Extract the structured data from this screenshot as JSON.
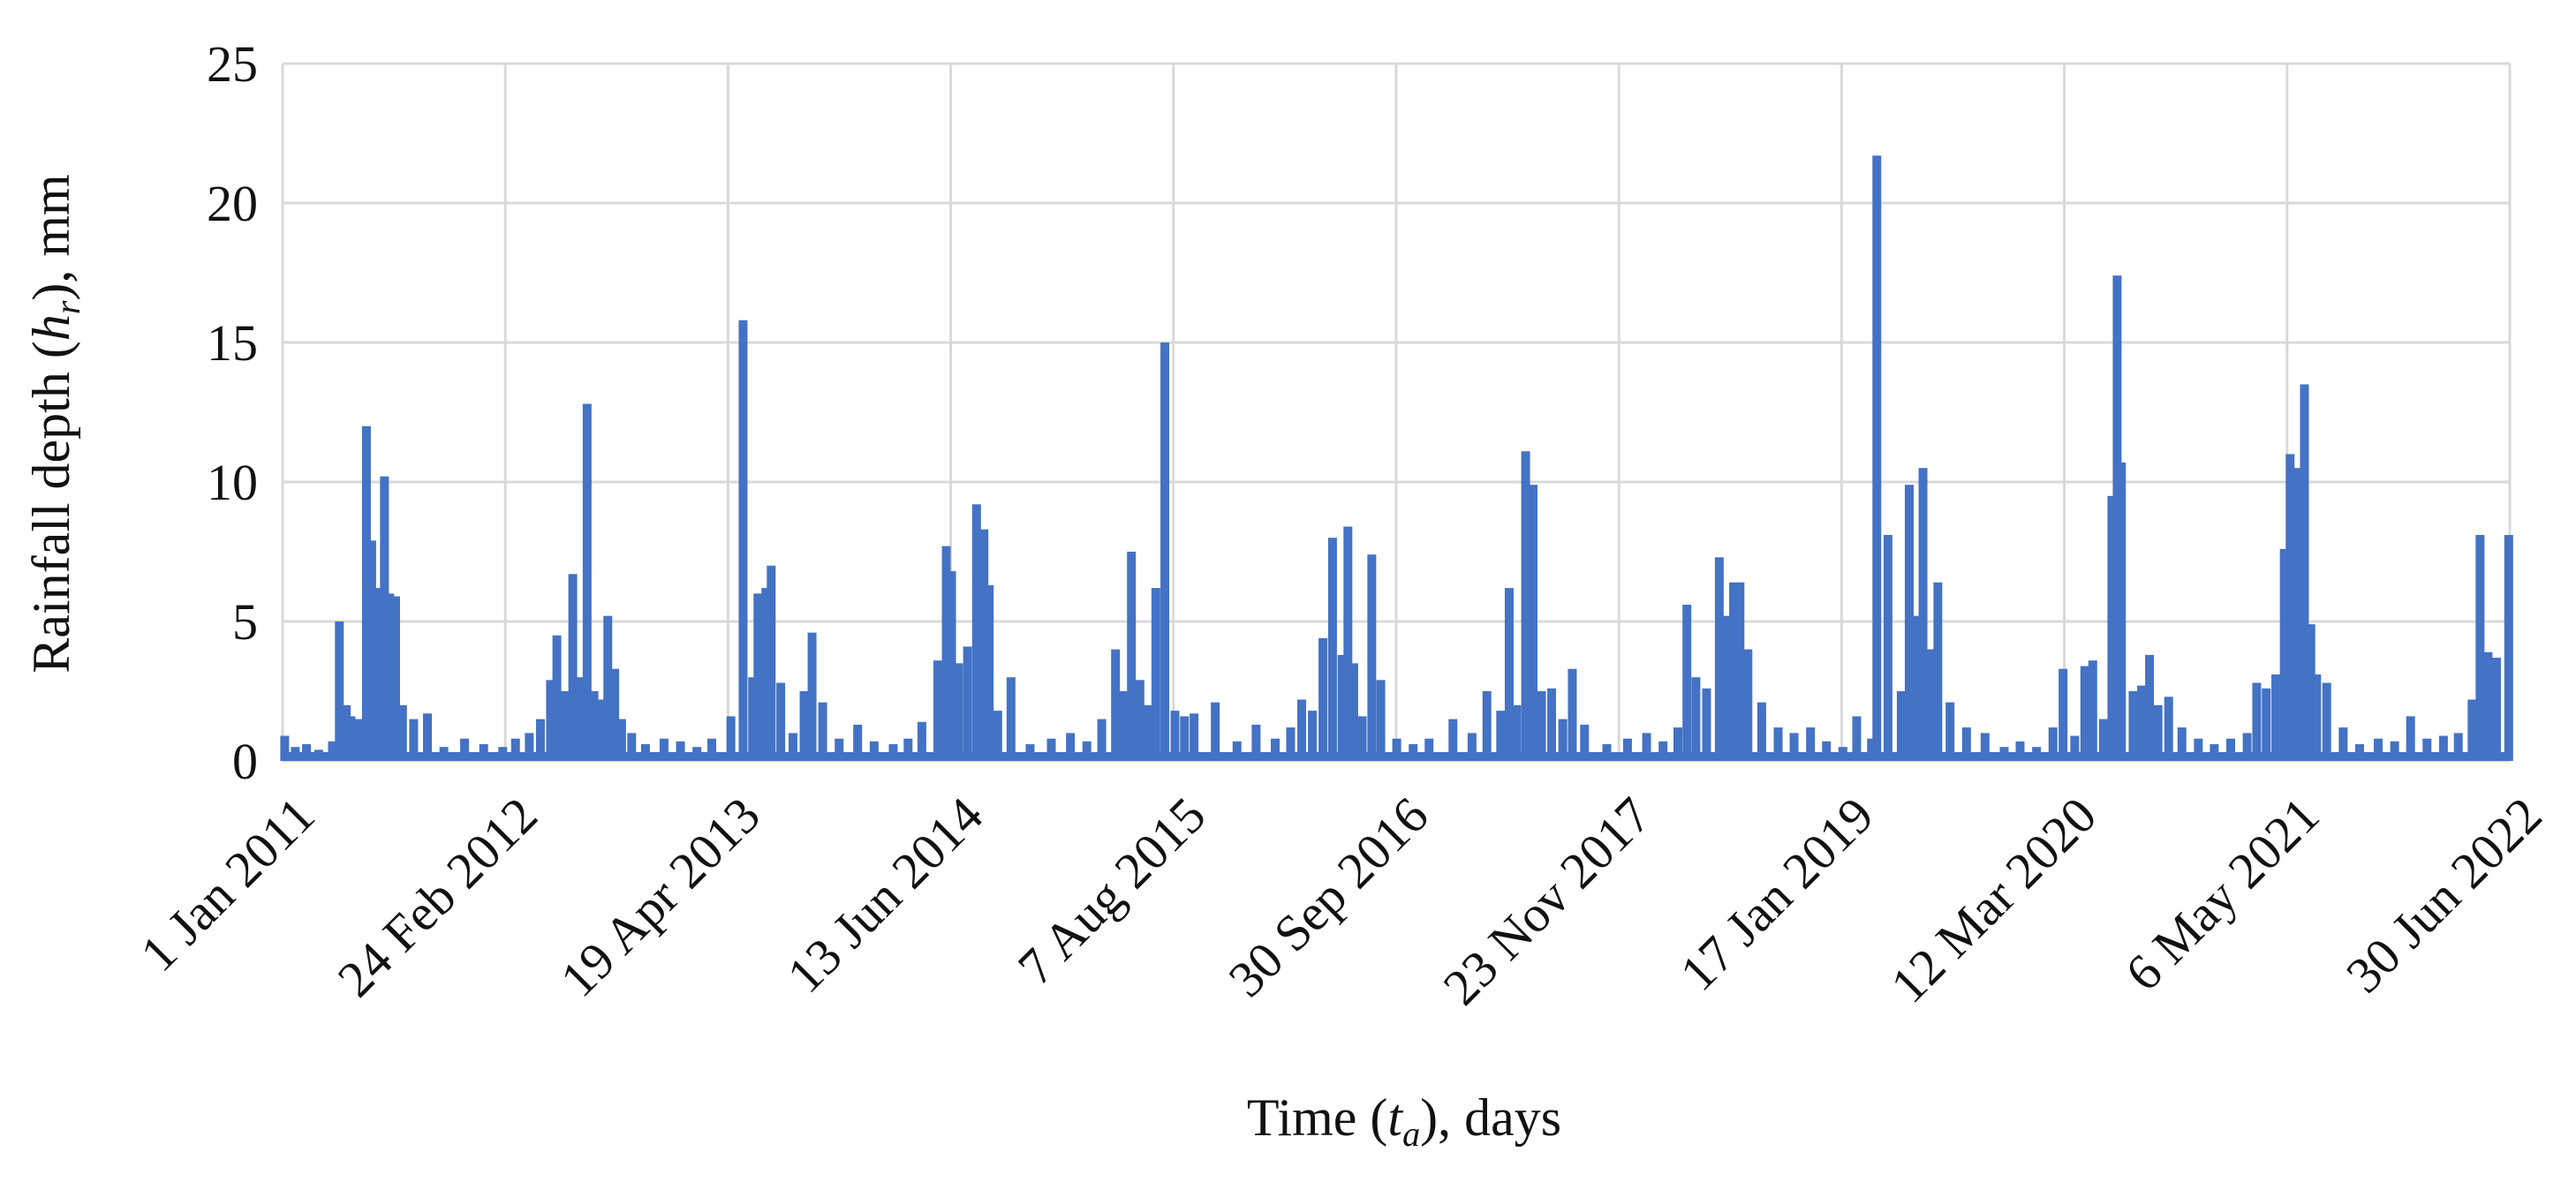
{
  "chart_data": {
    "type": "bar",
    "ylim": [
      0,
      25
    ],
    "yticks": [
      0,
      5,
      10,
      15,
      20,
      25
    ],
    "grid": true,
    "color": "#4472C4",
    "ylabel": {
      "pre": "Rainfall depth (",
      "var": "h",
      "sub": "r",
      "post": "), mm"
    },
    "xlabel": {
      "pre": "Time (",
      "var": "t",
      "sub": "a",
      "post": "), days"
    },
    "x_tick_labels": [
      "1 Jan 2011",
      "24 Feb 2012",
      "19 Apr 2013",
      "13 Jun 2014",
      "7 Aug 2015",
      "30 Sep 2016",
      "23 Nov 2017",
      "17 Jan 2019",
      "12 Mar 2020",
      "6 May 2021",
      "30 Jun 2022"
    ],
    "x_start": "2011-01-01",
    "x_end": "2022-06-30",
    "series": [
      {
        "points": [
          [
            "2011-01-05",
            0.9
          ],
          [
            "2011-01-25",
            0.5
          ],
          [
            "2011-02-15",
            0.6
          ],
          [
            "2011-03-10",
            0.4
          ],
          [
            "2011-04-05",
            0.7
          ],
          [
            "2011-04-18",
            5.0
          ],
          [
            "2011-05-01",
            2.0
          ],
          [
            "2011-05-10",
            1.6
          ],
          [
            "2011-05-25",
            1.5
          ],
          [
            "2011-06-08",
            12.0
          ],
          [
            "2011-06-18",
            7.9
          ],
          [
            "2011-06-28",
            6.2
          ],
          [
            "2011-07-08",
            4.5
          ],
          [
            "2011-07-12",
            10.2
          ],
          [
            "2011-07-22",
            6.0
          ],
          [
            "2011-08-02",
            5.9
          ],
          [
            "2011-08-15",
            2.0
          ],
          [
            "2011-09-05",
            1.5
          ],
          [
            "2011-10-01",
            1.7
          ],
          [
            "2011-11-01",
            0.5
          ],
          [
            "2011-12-10",
            0.8
          ],
          [
            "2012-01-15",
            0.6
          ],
          [
            "2012-02-20",
            0.5
          ],
          [
            "2012-03-15",
            0.8
          ],
          [
            "2012-04-10",
            1.0
          ],
          [
            "2012-05-01",
            1.5
          ],
          [
            "2012-05-20",
            2.9
          ],
          [
            "2012-06-01",
            4.5
          ],
          [
            "2012-06-15",
            2.5
          ],
          [
            "2012-07-01",
            6.7
          ],
          [
            "2012-07-15",
            3.0
          ],
          [
            "2012-07-28",
            12.8
          ],
          [
            "2012-08-10",
            2.5
          ],
          [
            "2012-08-25",
            2.2
          ],
          [
            "2012-09-05",
            5.2
          ],
          [
            "2012-09-18",
            3.3
          ],
          [
            "2012-10-01",
            1.5
          ],
          [
            "2012-10-20",
            1.0
          ],
          [
            "2012-11-15",
            0.6
          ],
          [
            "2012-12-20",
            0.8
          ],
          [
            "2013-01-20",
            0.7
          ],
          [
            "2013-02-20",
            0.5
          ],
          [
            "2013-03-20",
            0.8
          ],
          [
            "2013-04-25",
            1.6
          ],
          [
            "2013-05-18",
            15.8
          ],
          [
            "2013-06-05",
            3.0
          ],
          [
            "2013-06-15",
            6.0
          ],
          [
            "2013-06-30",
            6.2
          ],
          [
            "2013-07-10",
            7.0
          ],
          [
            "2013-07-28",
            2.8
          ],
          [
            "2013-08-20",
            1.0
          ],
          [
            "2013-09-10",
            2.5
          ],
          [
            "2013-09-25",
            4.6
          ],
          [
            "2013-10-15",
            2.1
          ],
          [
            "2013-11-15",
            0.8
          ],
          [
            "2013-12-20",
            1.3
          ],
          [
            "2014-01-20",
            0.7
          ],
          [
            "2014-02-25",
            0.6
          ],
          [
            "2014-03-25",
            0.8
          ],
          [
            "2014-04-20",
            1.4
          ],
          [
            "2014-05-20",
            3.6
          ],
          [
            "2014-06-05",
            7.7
          ],
          [
            "2014-06-15",
            6.8
          ],
          [
            "2014-06-28",
            3.5
          ],
          [
            "2014-07-15",
            4.1
          ],
          [
            "2014-08-01",
            9.2
          ],
          [
            "2014-08-15",
            8.3
          ],
          [
            "2014-08-25",
            6.3
          ],
          [
            "2014-09-10",
            1.8
          ],
          [
            "2014-10-05",
            3.0
          ],
          [
            "2014-11-10",
            0.6
          ],
          [
            "2014-12-20",
            0.8
          ],
          [
            "2015-01-25",
            1.0
          ],
          [
            "2015-02-25",
            0.7
          ],
          [
            "2015-03-25",
            1.5
          ],
          [
            "2015-04-20",
            4.0
          ],
          [
            "2015-05-05",
            2.5
          ],
          [
            "2015-05-20",
            7.5
          ],
          [
            "2015-06-05",
            2.9
          ],
          [
            "2015-06-20",
            2.0
          ],
          [
            "2015-07-05",
            6.2
          ],
          [
            "2015-07-22",
            15.0
          ],
          [
            "2015-08-10",
            1.8
          ],
          [
            "2015-08-28",
            1.6
          ],
          [
            "2015-09-15",
            1.7
          ],
          [
            "2015-10-25",
            2.1
          ],
          [
            "2015-12-05",
            0.7
          ],
          [
            "2016-01-10",
            1.3
          ],
          [
            "2016-02-15",
            0.8
          ],
          [
            "2016-03-15",
            1.2
          ],
          [
            "2016-04-05",
            2.2
          ],
          [
            "2016-04-25",
            1.8
          ],
          [
            "2016-05-15",
            4.4
          ],
          [
            "2016-06-02",
            8.0
          ],
          [
            "2016-06-20",
            3.8
          ],
          [
            "2016-07-01",
            8.4
          ],
          [
            "2016-07-12",
            3.5
          ],
          [
            "2016-07-28",
            1.6
          ],
          [
            "2016-08-15",
            7.4
          ],
          [
            "2016-09-01",
            2.9
          ],
          [
            "2016-10-01",
            0.8
          ],
          [
            "2016-11-01",
            0.6
          ],
          [
            "2016-12-01",
            0.8
          ],
          [
            "2017-01-15",
            1.5
          ],
          [
            "2017-02-20",
            1.0
          ],
          [
            "2017-03-20",
            2.5
          ],
          [
            "2017-04-15",
            1.8
          ],
          [
            "2017-05-01",
            6.2
          ],
          [
            "2017-05-15",
            2.0
          ],
          [
            "2017-06-01",
            11.1
          ],
          [
            "2017-06-15",
            9.9
          ],
          [
            "2017-07-01",
            2.5
          ],
          [
            "2017-07-20",
            2.6
          ],
          [
            "2017-08-10",
            1.5
          ],
          [
            "2017-08-28",
            3.3
          ],
          [
            "2017-09-20",
            1.3
          ],
          [
            "2017-11-01",
            0.6
          ],
          [
            "2017-12-10",
            0.8
          ],
          [
            "2018-01-15",
            1.0
          ],
          [
            "2018-02-15",
            0.7
          ],
          [
            "2018-03-15",
            1.2
          ],
          [
            "2018-04-01",
            5.6
          ],
          [
            "2018-04-18",
            3.0
          ],
          [
            "2018-05-08",
            2.6
          ],
          [
            "2018-06-01",
            7.3
          ],
          [
            "2018-06-15",
            5.2
          ],
          [
            "2018-06-28",
            6.4
          ],
          [
            "2018-07-10",
            6.4
          ],
          [
            "2018-07-25",
            4.0
          ],
          [
            "2018-08-20",
            2.1
          ],
          [
            "2018-09-20",
            1.2
          ],
          [
            "2018-10-20",
            1.0
          ],
          [
            "2018-11-20",
            1.2
          ],
          [
            "2018-12-20",
            0.7
          ],
          [
            "2019-01-20",
            0.5
          ],
          [
            "2019-02-15",
            1.6
          ],
          [
            "2019-03-15",
            0.8
          ],
          [
            "2019-03-25",
            21.7
          ],
          [
            "2019-04-15",
            8.1
          ],
          [
            "2019-05-10",
            2.5
          ],
          [
            "2019-05-25",
            9.9
          ],
          [
            "2019-06-05",
            5.2
          ],
          [
            "2019-06-20",
            10.5
          ],
          [
            "2019-07-05",
            4.0
          ],
          [
            "2019-07-18",
            6.4
          ],
          [
            "2019-08-10",
            2.1
          ],
          [
            "2019-09-10",
            1.2
          ],
          [
            "2019-10-15",
            1.0
          ],
          [
            "2019-11-20",
            0.5
          ],
          [
            "2019-12-20",
            0.7
          ],
          [
            "2020-01-20",
            0.5
          ],
          [
            "2020-02-20",
            1.2
          ],
          [
            "2020-03-10",
            3.3
          ],
          [
            "2020-04-01",
            0.9
          ],
          [
            "2020-04-20",
            3.4
          ],
          [
            "2020-05-05",
            3.6
          ],
          [
            "2020-05-25",
            1.5
          ],
          [
            "2020-06-10",
            9.5
          ],
          [
            "2020-06-20",
            17.4
          ],
          [
            "2020-06-28",
            10.7
          ],
          [
            "2020-07-20",
            2.5
          ],
          [
            "2020-08-05",
            2.7
          ],
          [
            "2020-08-20",
            3.8
          ],
          [
            "2020-09-05",
            2.0
          ],
          [
            "2020-09-25",
            2.3
          ],
          [
            "2020-10-20",
            1.2
          ],
          [
            "2020-11-20",
            0.8
          ],
          [
            "2020-12-20",
            0.6
          ],
          [
            "2021-01-20",
            0.8
          ],
          [
            "2021-02-20",
            1.0
          ],
          [
            "2021-03-10",
            2.8
          ],
          [
            "2021-03-28",
            2.6
          ],
          [
            "2021-04-15",
            3.1
          ],
          [
            "2021-05-01",
            7.6
          ],
          [
            "2021-05-12",
            11.0
          ],
          [
            "2021-05-25",
            10.5
          ],
          [
            "2021-06-08",
            13.5
          ],
          [
            "2021-06-20",
            4.9
          ],
          [
            "2021-07-01",
            3.1
          ],
          [
            "2021-07-20",
            2.8
          ],
          [
            "2021-08-20",
            1.2
          ],
          [
            "2021-09-20",
            0.6
          ],
          [
            "2021-10-25",
            0.8
          ],
          [
            "2021-11-25",
            0.7
          ],
          [
            "2021-12-25",
            1.6
          ],
          [
            "2022-01-25",
            0.8
          ],
          [
            "2022-02-25",
            0.9
          ],
          [
            "2022-03-25",
            1.0
          ],
          [
            "2022-04-20",
            2.2
          ],
          [
            "2022-05-05",
            8.1
          ],
          [
            "2022-05-20",
            3.9
          ],
          [
            "2022-06-05",
            3.7
          ],
          [
            "2022-06-28",
            8.1
          ]
        ]
      }
    ]
  }
}
